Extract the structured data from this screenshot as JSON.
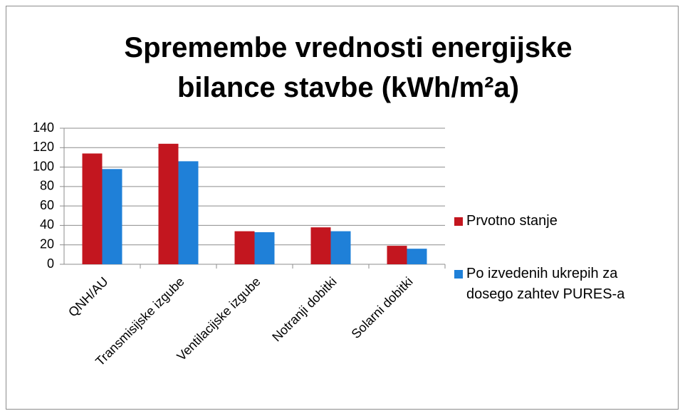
{
  "chart_data": {
    "type": "bar",
    "title": "Spremembe vrednosti energijske bilance stavbe (kWh/m²a)",
    "categories": [
      "QNH/AU",
      "Transmisijske izgube",
      "Ventilacijske izgube",
      "Notranji dobitki",
      "Solarni dobitki"
    ],
    "series": [
      {
        "name": "Prvotno stanje",
        "color": "#c3161f",
        "values": [
          114,
          124,
          34,
          38,
          19
        ]
      },
      {
        "name": "Po izvedenih ukrepih za dosego zahtev PURES-a",
        "color": "#1f80d8",
        "values": [
          98,
          106,
          33,
          34,
          16
        ]
      }
    ],
    "ylim": [
      0,
      140
    ],
    "yticks": [
      0,
      20,
      40,
      60,
      80,
      100,
      120,
      140
    ],
    "grid": true,
    "legend": "right"
  }
}
